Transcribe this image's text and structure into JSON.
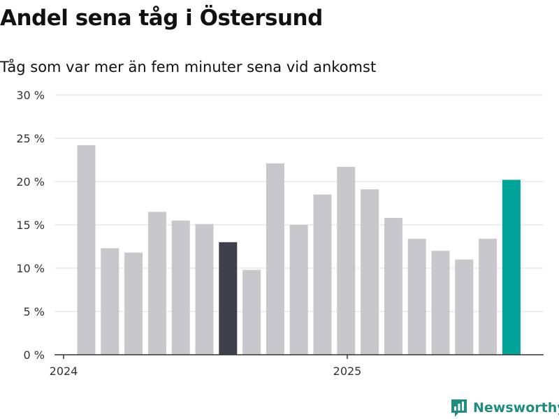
{
  "chart_data": {
    "type": "bar",
    "title": "Andel sena tåg i Östersund",
    "subtitle": "Tåg som var mer än fem minuter sena vid ankomst",
    "xlabel": "",
    "ylabel": "",
    "ylim": [
      0,
      30
    ],
    "yticks": [
      0,
      5,
      10,
      15,
      20,
      25,
      30
    ],
    "ytick_labels": [
      "0 %",
      "5 %",
      "10 %",
      "15 %",
      "20 %",
      "25 %",
      "30 %"
    ],
    "x_tick_labels": [
      "2024",
      "2025"
    ],
    "categories": [
      "2024-01",
      "2024-02",
      "2024-03",
      "2024-04",
      "2024-05",
      "2024-06",
      "2024-07",
      "2024-08",
      "2024-09",
      "2024-10",
      "2024-11",
      "2024-12",
      "2025-01",
      "2025-02",
      "2025-03",
      "2025-04",
      "2025-05",
      "2025-06",
      "2025-07"
    ],
    "values": [
      24.2,
      12.3,
      11.8,
      16.5,
      15.5,
      15.1,
      13.0,
      9.8,
      22.1,
      15.0,
      18.5,
      21.7,
      19.1,
      15.8,
      13.4,
      12.0,
      11.0,
      13.4,
      20.2
    ],
    "bar_colors": {
      "default": "#c8c7cc",
      "highlight_dark": "#403f4c",
      "highlight_latest": "#00a398"
    },
    "highlight_dark_index": 6,
    "highlight_latest_index": 18,
    "grid": true,
    "legend": "none"
  },
  "brand": {
    "name": "Newsworthy",
    "color": "#1e8c7e"
  }
}
